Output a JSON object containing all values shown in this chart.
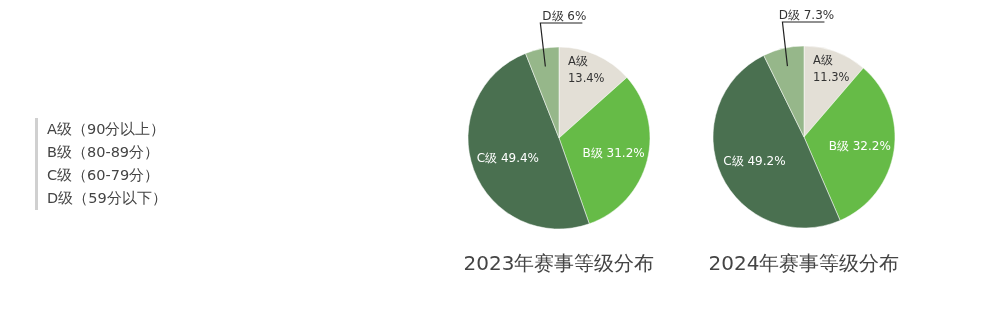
{
  "chart_data": [
    {
      "type": "other",
      "annotations": [
        "A级（90分以上）",
        "B级（80-89分）",
        "C级（60-79分）",
        "D级（59分以下）"
      ]
    },
    {
      "type": "pie",
      "title": "2023年赛事等级分布",
      "categories": [
        "A级",
        "B级",
        "C级",
        "D级"
      ],
      "values": [
        13.4,
        31.2,
        49.4,
        6
      ],
      "value_labels": [
        "13.4%",
        "31.2%",
        "49.4%",
        "6%"
      ],
      "colors": [
        "#e3dfd6",
        "#66bb47",
        "#4a7050",
        "#96b78a"
      ]
    },
    {
      "type": "pie",
      "title": "2024年赛事等级分布",
      "categories": [
        "A级",
        "B级",
        "C级",
        "D级"
      ],
      "values": [
        11.3,
        32.2,
        49.2,
        7.3
      ],
      "value_labels": [
        "11.3%",
        "32.2%",
        "49.2%",
        "7.3%"
      ],
      "colors": [
        "#e3dfd6",
        "#66bb47",
        "#4a7050",
        "#96b78a"
      ]
    }
  ]
}
